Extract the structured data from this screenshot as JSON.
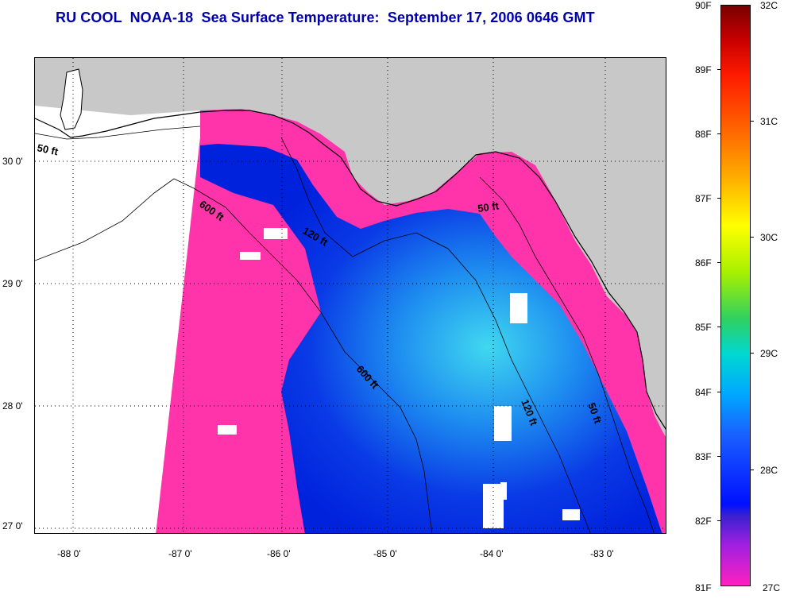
{
  "title": "RU COOL  NOAA-18  Sea Surface Temperature:  September 17, 2006 0646 GMT",
  "map": {
    "lon_labels": [
      "-88 0'",
      "-87 0'",
      "-86 0'",
      "-85 0'",
      "-84 0'",
      "-83 0'"
    ],
    "lat_labels": [
      "30 0'",
      "29 0'",
      "28 0'",
      "27 0'"
    ],
    "lon_range": [
      -88.3,
      -82.55
    ],
    "lat_range": [
      26.95,
      30.8
    ],
    "isobath_labels": [
      "50 ft",
      "600 ft",
      "120 ft",
      "50 ft",
      "600 ft",
      "120 ft",
      "50 ft"
    ],
    "colors": {
      "land": "#c8c8c8",
      "no_data": "#ffffff",
      "cold_water": "#ff33aa",
      "warm_core_dark": "#0022dd",
      "warm_core_mid": "#1e6ef0",
      "warm_core_light": "#40d8f0",
      "cloud_mask": "#ffffff"
    }
  },
  "colorbar": {
    "fahrenheit_labels": [
      "90F",
      "89F",
      "88F",
      "87F",
      "86F",
      "85F",
      "84F",
      "83F",
      "82F",
      "81F"
    ],
    "celsius_labels": [
      "32C",
      "31C",
      "30C",
      "29C",
      "28C",
      "27C"
    ]
  }
}
